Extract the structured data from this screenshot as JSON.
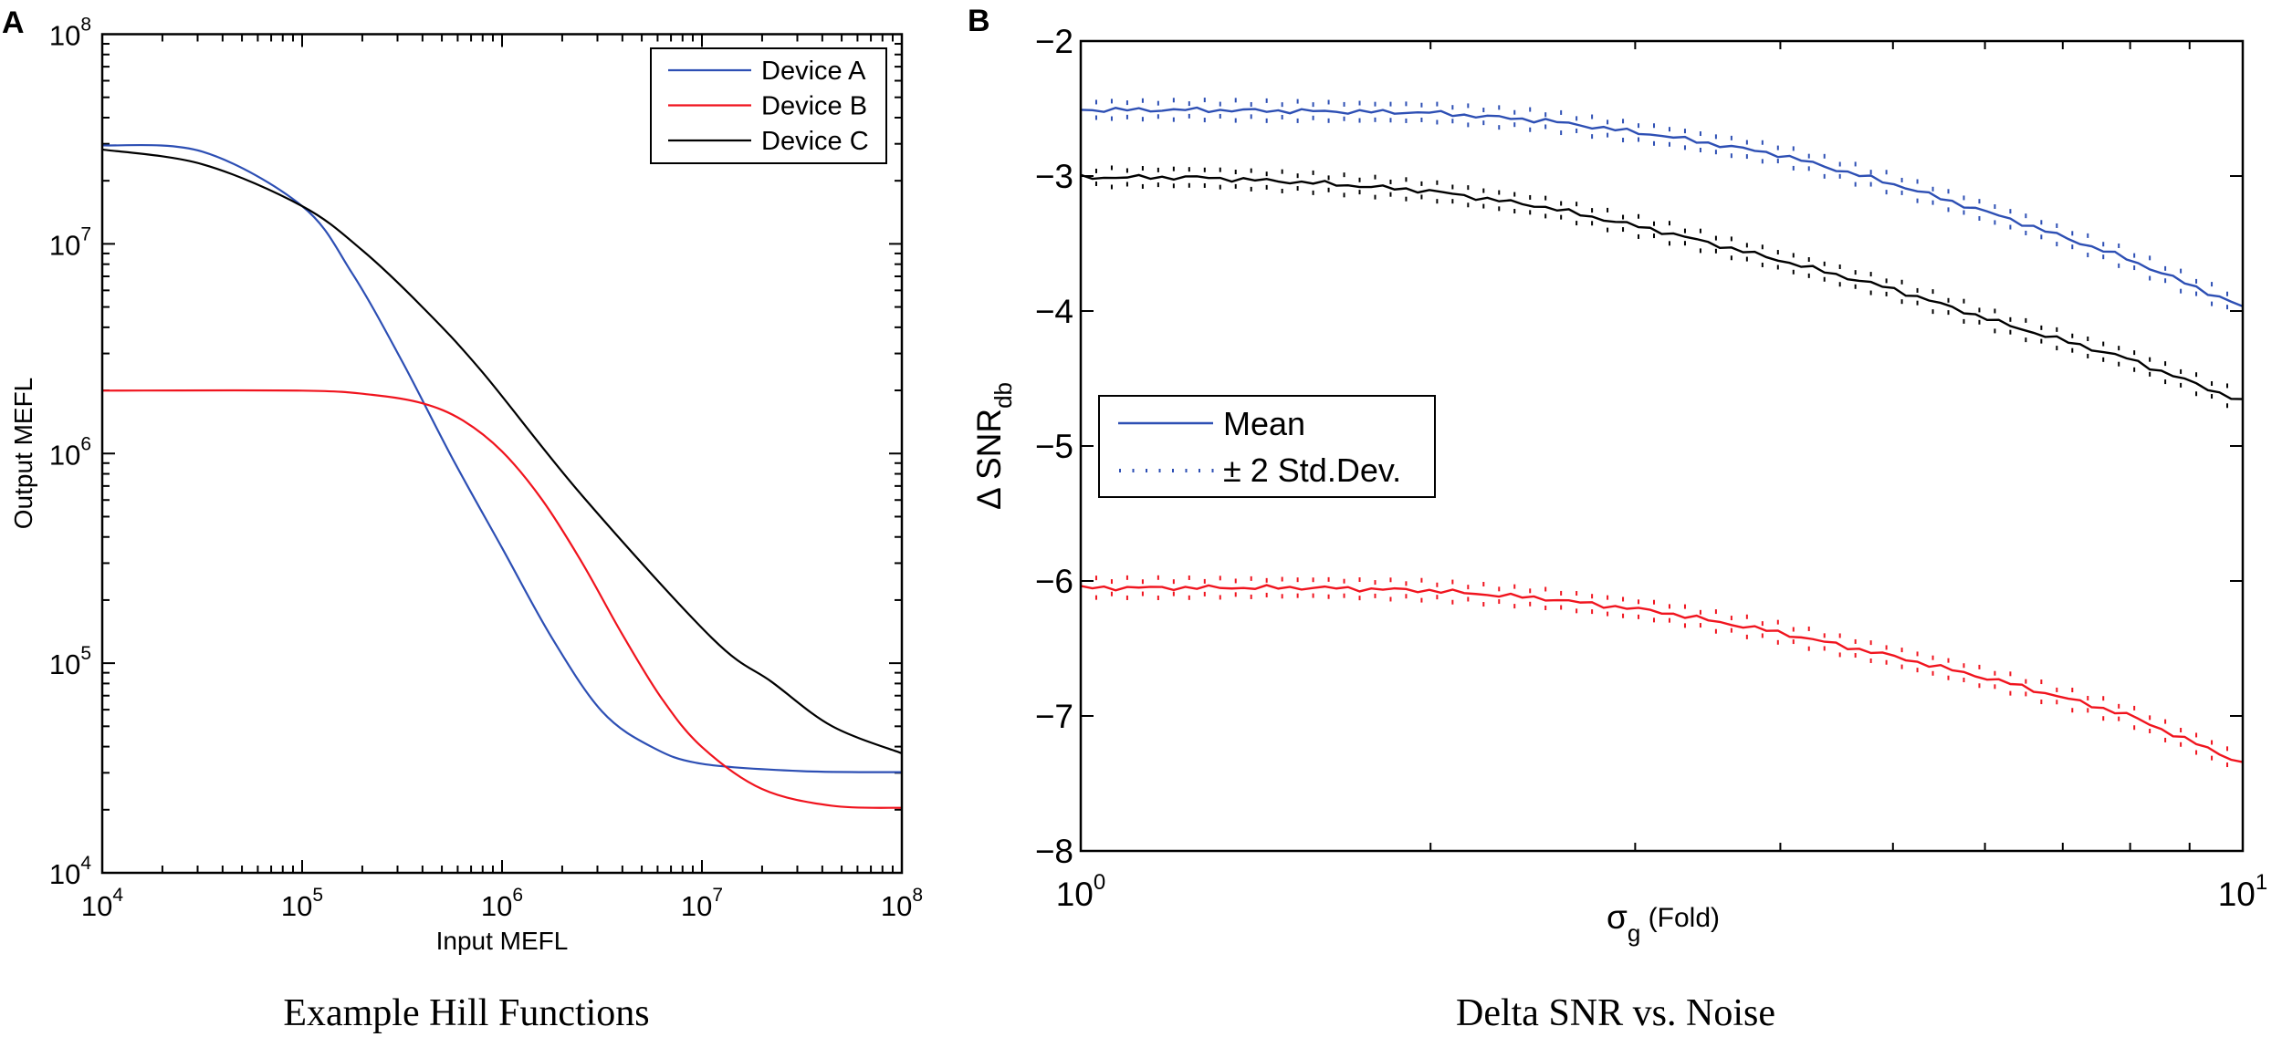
{
  "chart_data": [
    {
      "panel_label": "A",
      "type": "line",
      "title": "Example Hill Functions",
      "xlabel": "Input MEFL",
      "ylabel": "Output MEFL",
      "xscale": "log",
      "yscale": "log",
      "xlim_log10": [
        4,
        8
      ],
      "ylim_log10": [
        4,
        8
      ],
      "xticks": [
        {
          "base": "10",
          "exp": "4"
        },
        {
          "base": "10",
          "exp": "5"
        },
        {
          "base": "10",
          "exp": "6"
        },
        {
          "base": "10",
          "exp": "7"
        },
        {
          "base": "10",
          "exp": "8"
        }
      ],
      "yticks": [
        {
          "base": "10",
          "exp": "4"
        },
        {
          "base": "10",
          "exp": "5"
        },
        {
          "base": "10",
          "exp": "6"
        },
        {
          "base": "10",
          "exp": "7"
        },
        {
          "base": "10",
          "exp": "8"
        }
      ],
      "legend_position": "top-right",
      "series": [
        {
          "name": "Device A",
          "color": "#2d4fb4",
          "log10_x": [
            4,
            4.5,
            5,
            5.25,
            5.5,
            5.75,
            6,
            6.25,
            6.5,
            6.75,
            7,
            7.5,
            8
          ],
          "log10_y": [
            7.47,
            7.44,
            7.18,
            6.86,
            6.44,
            5.98,
            5.55,
            5.12,
            4.77,
            4.6,
            4.52,
            4.485,
            4.48
          ]
        },
        {
          "name": "Device B",
          "color": "#f0141e",
          "log10_x": [
            4,
            5,
            5.35,
            5.6,
            5.8,
            6,
            6.2,
            6.4,
            6.6,
            6.8,
            7,
            7.3,
            7.65,
            8
          ],
          "log10_y": [
            6.3,
            6.3,
            6.28,
            6.24,
            6.16,
            6.01,
            5.78,
            5.48,
            5.14,
            4.83,
            4.6,
            4.4,
            4.32,
            4.31
          ]
        },
        {
          "name": "Device C",
          "color": "#000000",
          "log10_x": [
            4,
            4.5,
            5,
            5.3,
            5.6,
            5.9,
            6.4,
            7.05,
            7.35,
            7.65,
            8
          ],
          "log10_y": [
            7.45,
            7.38,
            7.18,
            6.97,
            6.7,
            6.39,
            5.8,
            5.12,
            4.91,
            4.7,
            4.57
          ]
        }
      ]
    },
    {
      "panel_label": "B",
      "type": "line",
      "title": "Delta SNR vs. Noise",
      "xlabel": {
        "symbol": "σ",
        "sub": "g",
        "rest": " (Fold)"
      },
      "ylabel": {
        "main": "Δ SNR",
        "sub": "db"
      },
      "xscale": "log",
      "xlim": [
        1,
        10
      ],
      "ylim": [
        -8,
        -2
      ],
      "xticks": [
        {
          "base": "10",
          "exp": "0"
        },
        {
          "base": "10",
          "exp": "1"
        }
      ],
      "yticks": [
        "−8",
        "−7",
        "−6",
        "−5",
        "−4",
        "−3",
        "−2"
      ],
      "ytick_values": [
        -8,
        -7,
        -6,
        -5,
        -4,
        -3,
        -2
      ],
      "legend_position": "center-left",
      "legend": [
        "Mean",
        "± 2 Std.Dev."
      ],
      "x": [
        1,
        1.259,
        1.585,
        1.995,
        2.512,
        3.162,
        3.981,
        5.012,
        6.31,
        7.943,
        10
      ],
      "series": [
        {
          "name": "blue",
          "color": "#2d4fb4",
          "mean": [
            -2.51,
            -2.51,
            -2.52,
            -2.53,
            -2.59,
            -2.7,
            -2.84,
            -3.06,
            -3.32,
            -3.61,
            -3.97
          ],
          "two_std": 0.06
        },
        {
          "name": "black",
          "color": "#000000",
          "mean": [
            -3.01,
            -3.01,
            -3.05,
            -3.11,
            -3.23,
            -3.41,
            -3.62,
            -3.84,
            -4.11,
            -4.35,
            -4.67
          ],
          "two_std": 0.06
        },
        {
          "name": "red",
          "color": "#f0141e",
          "mean": [
            -6.05,
            -6.05,
            -6.05,
            -6.07,
            -6.13,
            -6.23,
            -6.38,
            -6.56,
            -6.76,
            -6.99,
            -7.35
          ],
          "two_std": 0.06
        }
      ]
    }
  ]
}
